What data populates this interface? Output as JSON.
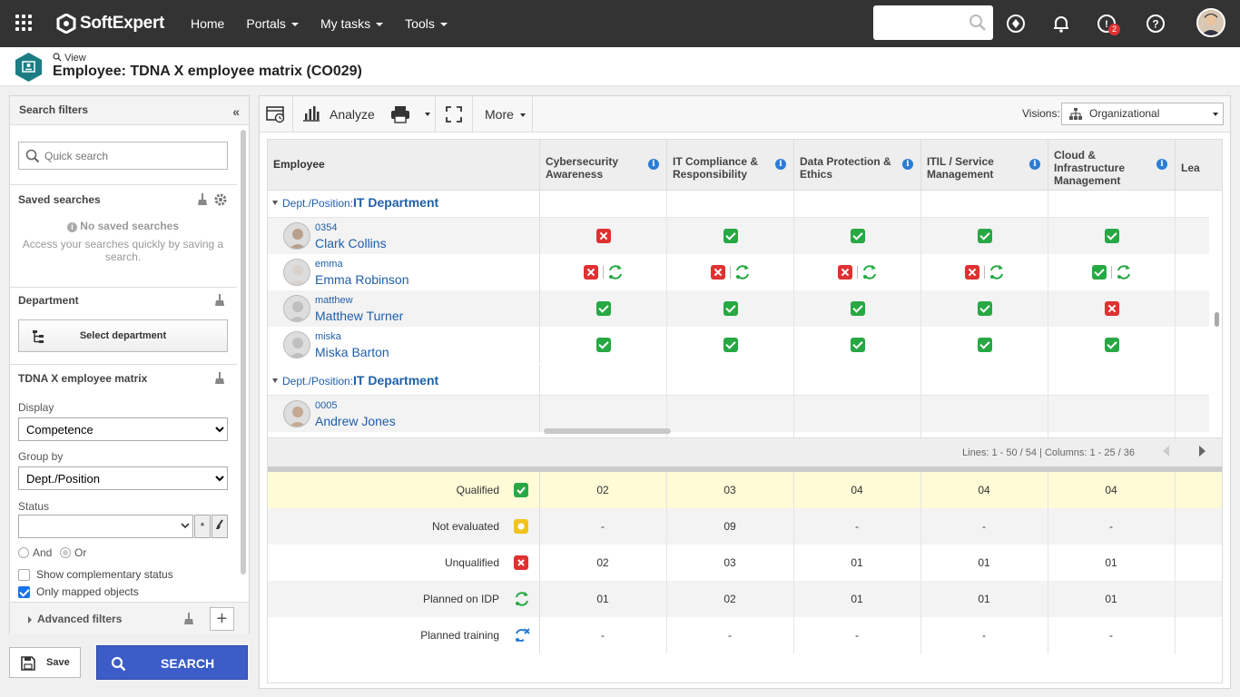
{
  "topbar": {
    "brand": "SoftExpert",
    "nav": [
      {
        "label": "Home",
        "has_menu": false
      },
      {
        "label": "Portals",
        "has_menu": true
      },
      {
        "label": "My tasks",
        "has_menu": true
      },
      {
        "label": "Tools",
        "has_menu": true
      }
    ],
    "search_placeholder": "",
    "notification_badge": "2",
    "icons": [
      "apps-grid-icon",
      "search-icon",
      "compass-icon",
      "bell-icon",
      "tasks-icon",
      "help-icon",
      "user-avatar"
    ]
  },
  "header": {
    "view_label": "View",
    "title": "Employee: TDNA X employee matrix (CO029)"
  },
  "filters": {
    "title": "Search filters",
    "quick_search_placeholder": "Quick search",
    "saved_searches": {
      "title": "Saved searches",
      "empty_title": "No saved searches",
      "empty_text": "Access your searches quickly by saving a search."
    },
    "department": {
      "title": "Department",
      "button": "Select department"
    },
    "matrix": {
      "title": "TDNA X employee matrix",
      "display_label": "Display",
      "display_value": "Competence",
      "groupby_label": "Group by",
      "groupby_value": "Dept./Position",
      "status_label": "Status",
      "and_label": "And",
      "or_label": "Or",
      "show_complementary": "Show complementary status",
      "only_mapped": "Only mapped objects"
    },
    "advanced": "Advanced filters",
    "save_label": "Save",
    "search_label": "SEARCH"
  },
  "toolbar": {
    "analyze": "Analyze",
    "more": "More",
    "visions_label": "Visions:",
    "visions_value": "Organizational"
  },
  "grid": {
    "employee_header": "Employee",
    "columns": [
      "Cybersecurity Awareness",
      "IT Compliance & Responsibility",
      "Data Protection & Ethics",
      "ITIL / Service Management",
      "Cloud & Infrastructure Management",
      "Lea"
    ],
    "groups": [
      {
        "prefix": "Dept./Position:",
        "value": "IT Department",
        "employees": [
          {
            "id": "0354",
            "name": "Clark Collins",
            "status": [
              "unqualified",
              "qualified",
              "qualified",
              "qualified",
              "qualified"
            ]
          },
          {
            "id": "emma",
            "name": "Emma Robinson",
            "status": [
              "unqualified-idp",
              "unqualified-idp",
              "unqualified-idp",
              "unqualified-idp",
              "qualified-idp"
            ]
          },
          {
            "id": "matthew",
            "name": "Matthew Turner",
            "status": [
              "qualified",
              "qualified",
              "qualified",
              "qualified",
              "unqualified"
            ]
          },
          {
            "id": "miska",
            "name": "Miska Barton",
            "status": [
              "qualified",
              "qualified",
              "qualified",
              "qualified",
              "qualified"
            ]
          }
        ]
      },
      {
        "prefix": "Dept./Position:",
        "value": "IT Department",
        "employees": [
          {
            "id": "0005",
            "name": "Andrew Jones",
            "status": []
          }
        ]
      }
    ],
    "pager": "Lines: 1 - 50 / 54 | Columns: 1 - 25 / 36"
  },
  "summary": [
    {
      "label": "Qualified",
      "icon": "qualified-icon",
      "values": [
        "02",
        "03",
        "04",
        "04",
        "04"
      ]
    },
    {
      "label": "Not evaluated",
      "icon": "not-evaluated-icon",
      "values": [
        "-",
        "09",
        "-",
        "-",
        "-"
      ]
    },
    {
      "label": "Unqualified",
      "icon": "unqualified-icon",
      "values": [
        "02",
        "03",
        "01",
        "01",
        "01"
      ]
    },
    {
      "label": "Planned on IDP",
      "icon": "idp-icon",
      "values": [
        "01",
        "02",
        "01",
        "01",
        "01"
      ]
    },
    {
      "label": "Planned training",
      "icon": "training-icon",
      "values": [
        "-",
        "-",
        "-",
        "-",
        "-"
      ]
    }
  ],
  "colors": {
    "topbar": "#333333",
    "link": "#1f5fa8",
    "qualified": "#27a844",
    "unqualified": "#e03131",
    "not_evaluated": "#f0c419",
    "search_button": "#3c5cc8",
    "highlight_row": "#fffbd6"
  }
}
